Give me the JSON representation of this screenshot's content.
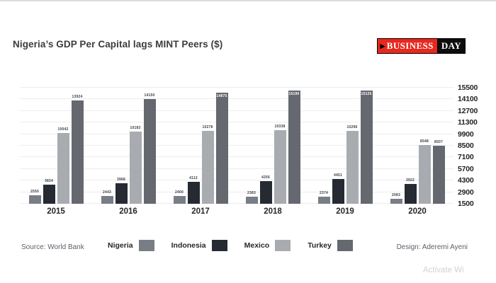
{
  "header": {
    "logo": {
      "arrow": "▶",
      "business": "BUSINESS",
      "day": "DAY",
      "red_color": "#e8281e",
      "black_color": "#0d0d0d"
    }
  },
  "chart_data": {
    "type": "bar",
    "title": "Nigeria’s GDP Per Capital lags MINT Peers ($)",
    "categories": [
      "2015",
      "2016",
      "2017",
      "2018",
      "2019",
      "2020"
    ],
    "series": [
      {
        "name": "Nigeria",
        "color": "#797d85",
        "values": [
          2550,
          2443,
          2400,
          2383,
          2374,
          2083
        ]
      },
      {
        "name": "Indonesia",
        "color": "#252a33",
        "values": [
          3824,
          3968,
          4112,
          4256,
          4451,
          3922
        ]
      },
      {
        "name": "Mexico",
        "color": "#a8abb0",
        "values": [
          10042,
          10183,
          10278,
          10338,
          10296,
          8548
        ]
      },
      {
        "name": "Turkey",
        "color": "#65686f",
        "values": [
          13924,
          14150,
          14875,
          15190,
          15125,
          8507
        ]
      }
    ],
    "ylim": [
      1500,
      15500
    ],
    "yticks": [
      15500,
      14100,
      12700,
      11300,
      9900,
      8500,
      7100,
      5700,
      4300,
      2900,
      1500
    ],
    "grid": true,
    "axis_side": "right",
    "legend_position": "bottom",
    "data_labels": true,
    "inside_label_threshold": 14500,
    "gridline_color": "#ededf1"
  },
  "footer": {
    "source": "Source: World Bank",
    "design": "Design: Aderemi Ayeni"
  },
  "watermark": "Activate Wi"
}
